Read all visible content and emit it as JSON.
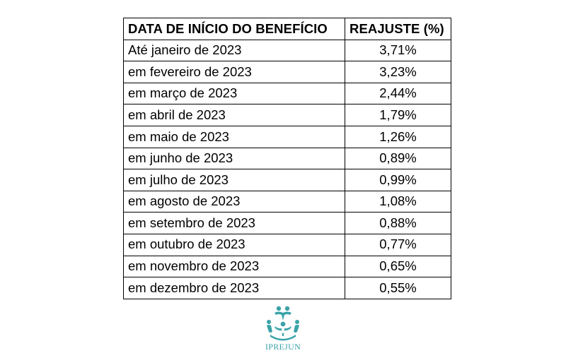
{
  "table": {
    "headers": [
      "DATA DE INÍCIO DO BENEFÍCIO",
      "REAJUSTE (%)"
    ],
    "rows": [
      [
        "Até janeiro de 2023",
        "3,71%"
      ],
      [
        "em fevereiro de 2023",
        "3,23%"
      ],
      [
        "em março de 2023",
        "2,44%"
      ],
      [
        "em abril de 2023",
        "1,79%"
      ],
      [
        "em maio de 2023",
        "1,26%"
      ],
      [
        "em junho de 2023",
        "0,89%"
      ],
      [
        "em julho de 2023",
        "0,99%"
      ],
      [
        "em agosto de 2023",
        "1,08%"
      ],
      [
        "em setembro de 2023",
        "0,88%"
      ],
      [
        "em outubro de 2023",
        "0,77%"
      ],
      [
        "em novembro de 2023",
        "0,65%"
      ],
      [
        "em dezembro de 2023",
        "0,55%"
      ]
    ]
  },
  "logo": {
    "text": "IPREJUN",
    "icon": "people-circle-icon",
    "color": "#3aa3a8"
  }
}
